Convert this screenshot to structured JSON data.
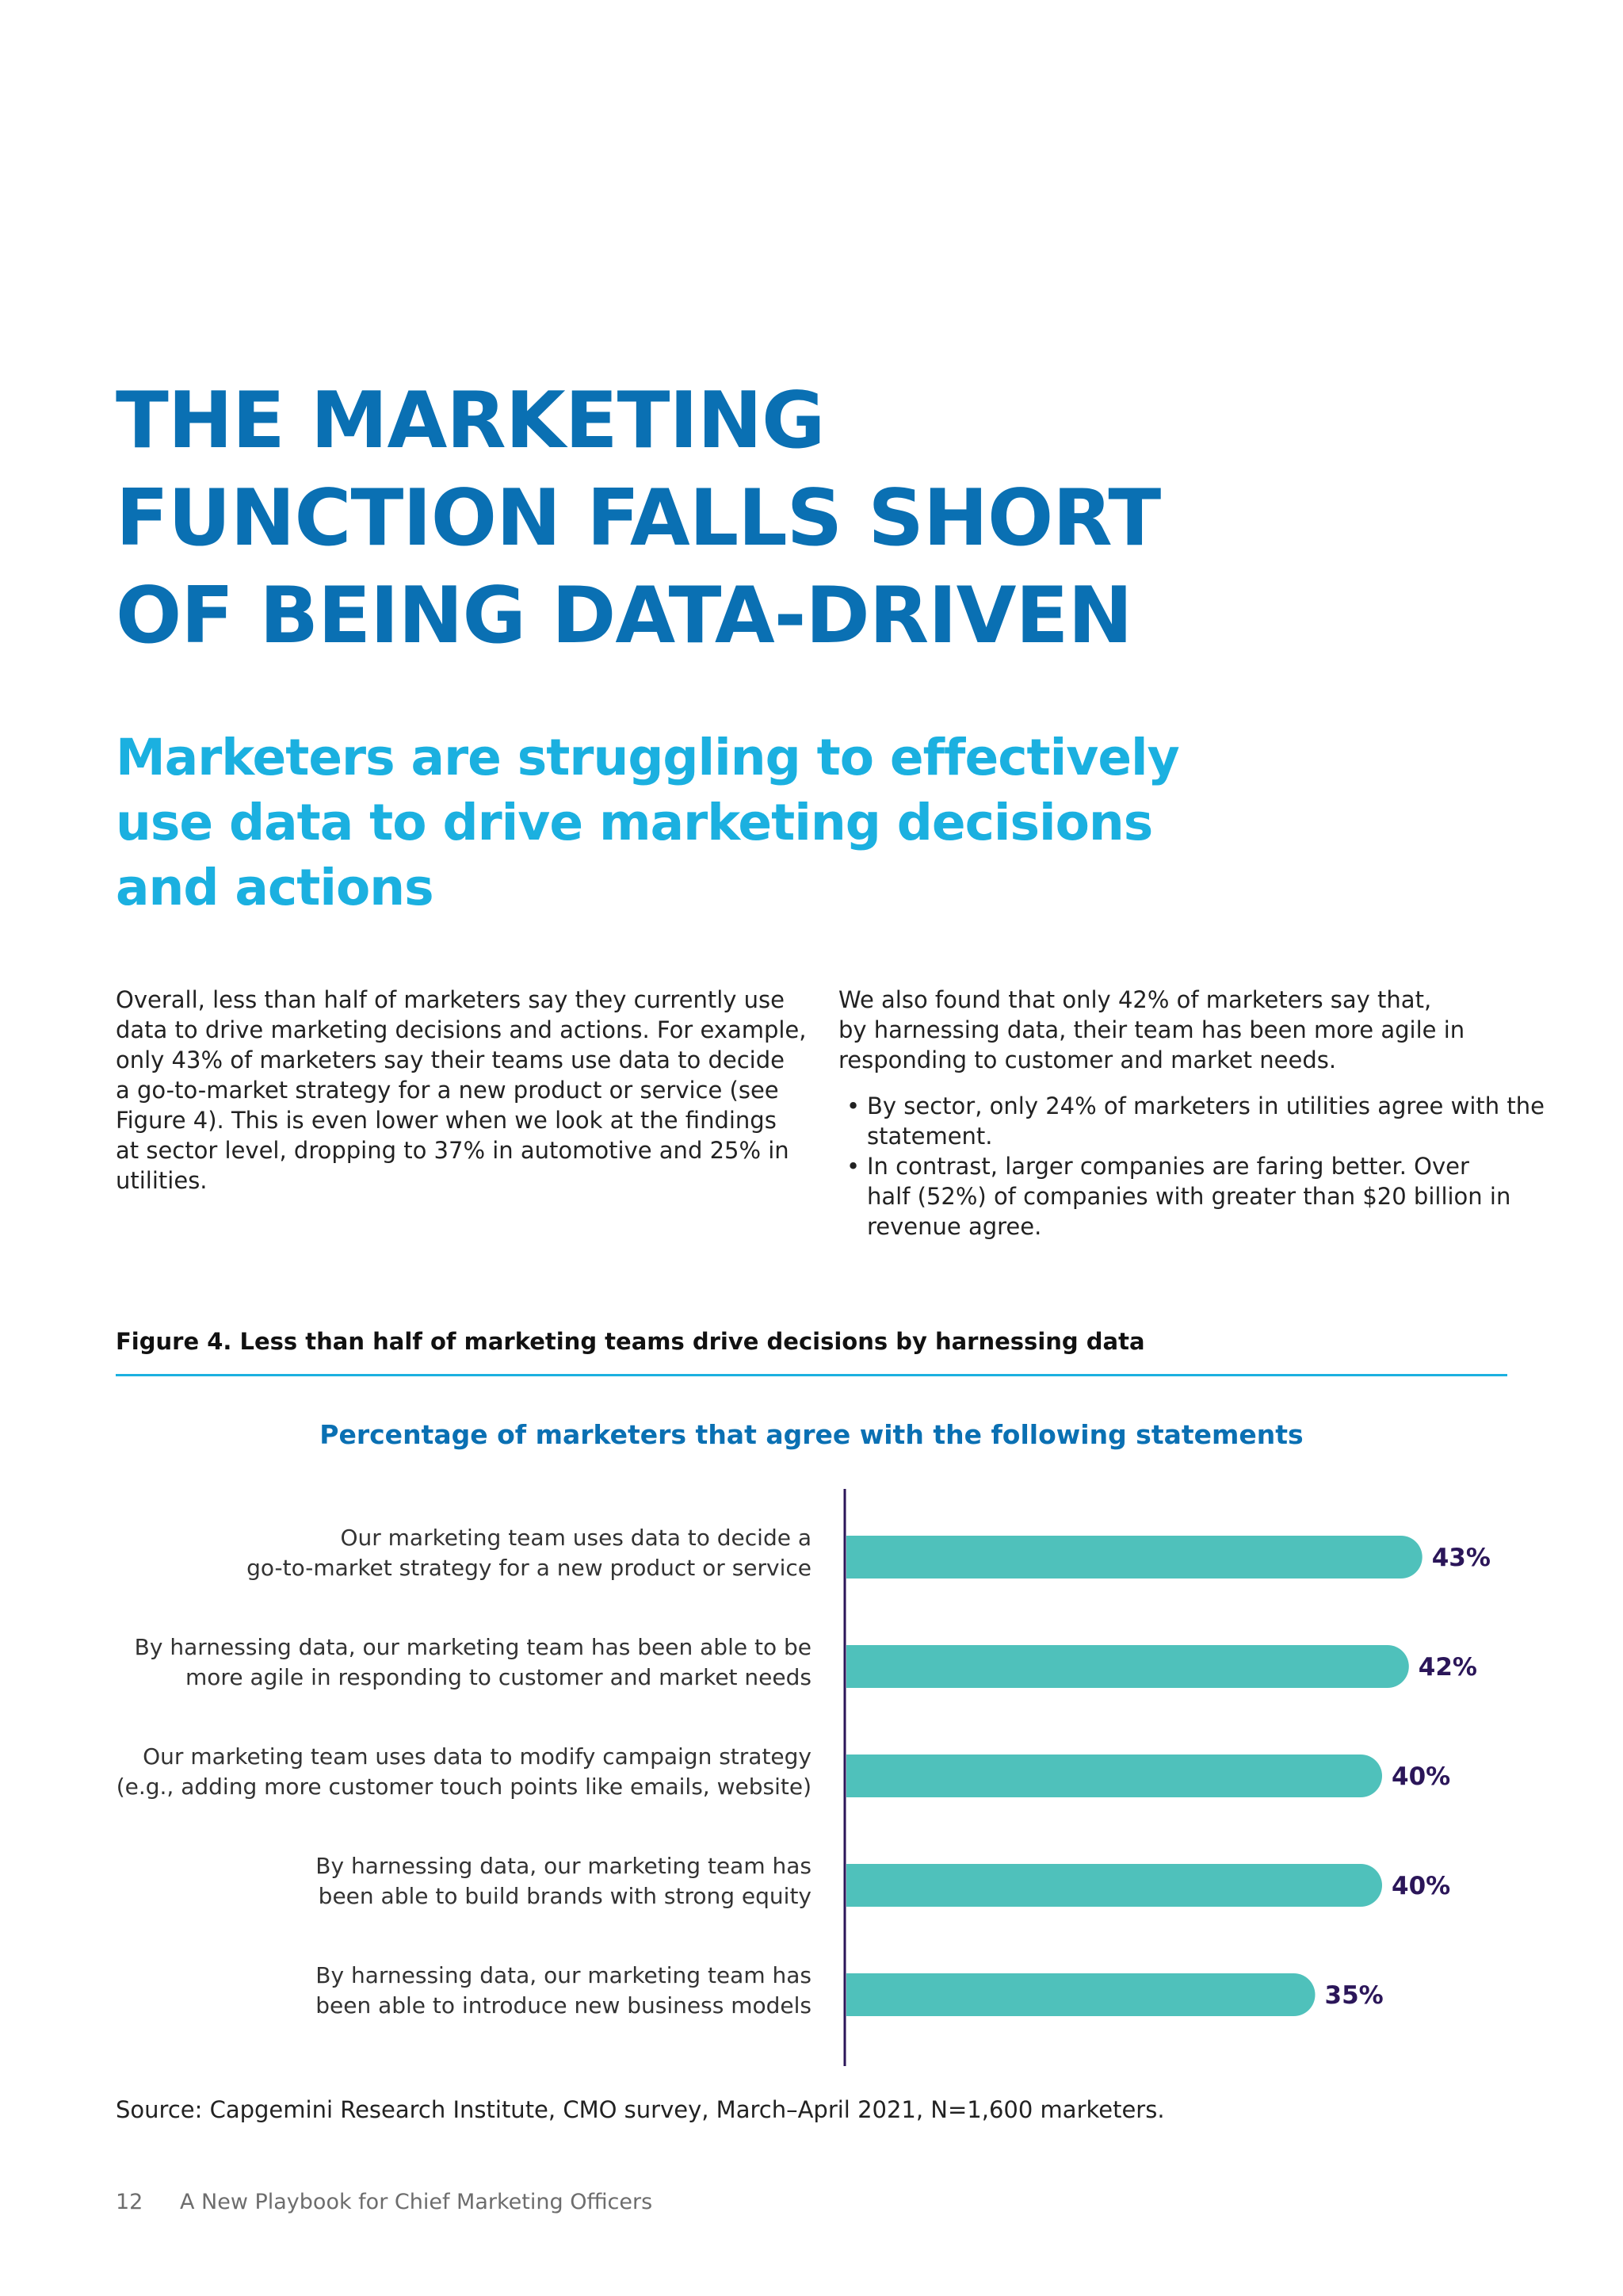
{
  "title_lines": [
    "THE MARKETING",
    "FUNCTION FALLS SHORT",
    "OF BEING DATA-DRIVEN"
  ],
  "subtitle_lines": [
    "Marketers are struggling to effectively",
    "use data to drive marketing decisions",
    "and actions"
  ],
  "left_column_lines": [
    "Overall, less than half of marketers say they currently use",
    "data to drive marketing decisions and actions. For example,",
    "only 43% of marketers say their teams use data to decide",
    "a go-to-market strategy for a new product or service (see",
    "Figure 4). This is even lower when we look at the findings",
    "at sector level, dropping to 37% in automotive and 25% in",
    "utilities."
  ],
  "right_column_intro_lines": [
    "We also found that only 42% of marketers say that,",
    "by harnessing data, their team has been more agile in",
    "responding to customer and market needs."
  ],
  "right_column_bullets": [
    [
      "By sector, only 24% of marketers in utilities agree with the",
      "statement."
    ],
    [
      "In contrast, larger companies are faring better. Over",
      "half (52%) of companies with greater than $20 billion in",
      "revenue agree."
    ]
  ],
  "figure_title": "Figure 4. Less than half of marketing teams drive decisions by harnessing data",
  "chart_title": "Percentage of marketers that agree with the following statements",
  "chart_data": {
    "type": "bar",
    "orientation": "horizontal",
    "title": "Percentage of marketers that agree with the following statements",
    "categories": [
      [
        "Our marketing team uses data to decide a",
        "go-to-market strategy for a new product or service"
      ],
      [
        "By harnessing data, our marketing team has been able to be",
        "more agile in responding to customer and market needs"
      ],
      [
        "Our marketing team uses data to modify campaign strategy",
        "(e.g., adding more customer touch points like emails, website)"
      ],
      [
        "By harnessing data, our marketing team has",
        "been able to build brands with strong equity"
      ],
      [
        "By harnessing data, our marketing team has",
        "been able to introduce new business models"
      ]
    ],
    "values": [
      43,
      42,
      40,
      40,
      35
    ],
    "value_labels": [
      "43%",
      "42%",
      "40%",
      "40%",
      "35%"
    ],
    "xlim": [
      0,
      50
    ],
    "bar_color": "#4fc1bb",
    "label_color": "#2b1659",
    "grid": false,
    "legend": "none"
  },
  "source": "Source: Capgemini Research Institute, CMO survey, March–April 2021, N=1,600 marketers.",
  "footer": {
    "page_number": "12",
    "publication": "A New Playbook for  Chief Marketing Officers"
  }
}
